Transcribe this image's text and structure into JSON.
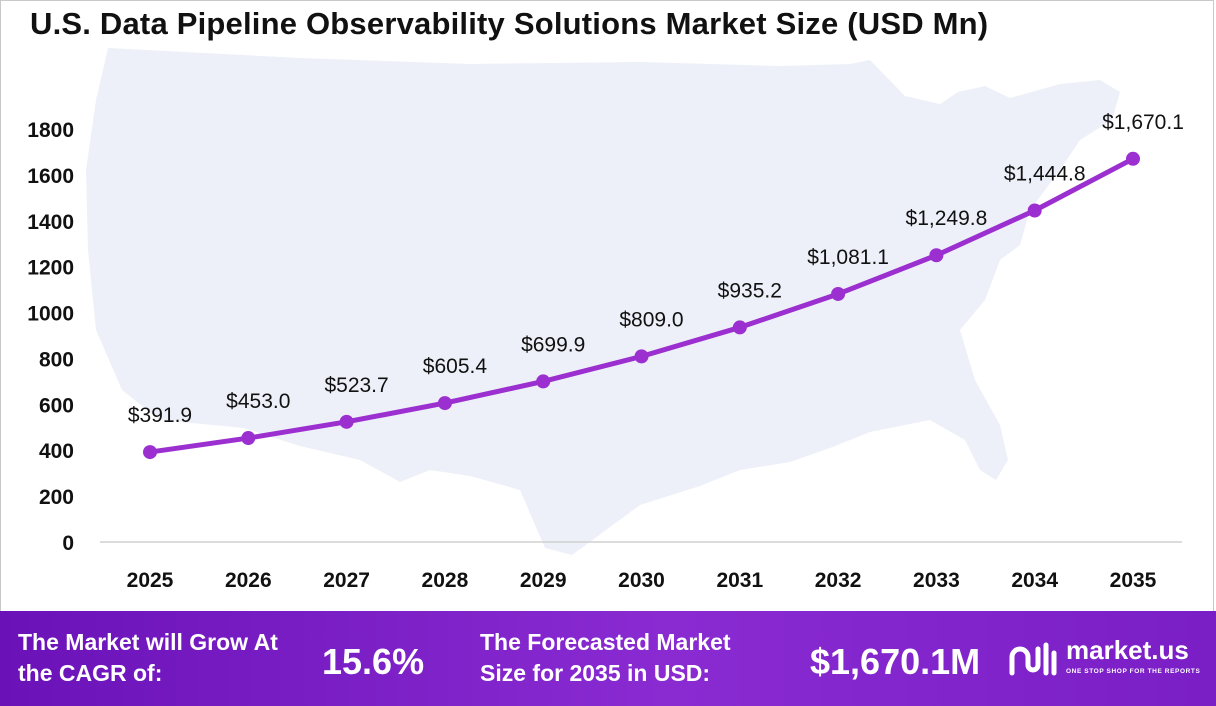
{
  "title": "U.S. Data Pipeline Observability Solutions Market Size (USD Mn)",
  "colors": {
    "line": "#9b2fcf",
    "footer": "#7a1ec6",
    "map": "#edf0f8"
  },
  "chart_data": {
    "type": "line",
    "title": "U.S. Data Pipeline Observability Solutions Market Size (USD Mn)",
    "categories": [
      "2025",
      "2026",
      "2027",
      "2028",
      "2029",
      "2030",
      "2031",
      "2032",
      "2033",
      "2034",
      "2035"
    ],
    "series": [
      {
        "values": [
          391.9,
          453.0,
          523.7,
          605.4,
          699.9,
          809.0,
          935.2,
          1081.1,
          1249.8,
          1444.8,
          1670.1
        ],
        "labels": [
          "$391.9",
          "$453.0",
          "$523.7",
          "$605.4",
          "$699.9",
          "$809.0",
          "$935.2",
          "$1,081.1",
          "$1,249.8",
          "$1,444.8",
          "$1,670.1"
        ]
      }
    ],
    "yticks": [
      "0",
      "200",
      "400",
      "600",
      "800",
      "1000",
      "1200",
      "1400",
      "1600",
      "1800"
    ],
    "ylim": [
      0,
      1800
    ],
    "xlabel": "",
    "ylabel": "",
    "grid": false,
    "background_image": "us-map-silhouette"
  },
  "footer": {
    "cagr_label": "The Market will Grow At the CAGR of:",
    "cagr_value": "15.6%",
    "forecast_label": "The Forecasted Market Size for 2035 in USD:",
    "forecast_value": "$1,670.1M",
    "brand_name": "market.us",
    "brand_tagline": "ONE STOP SHOP FOR THE REPORTS"
  }
}
